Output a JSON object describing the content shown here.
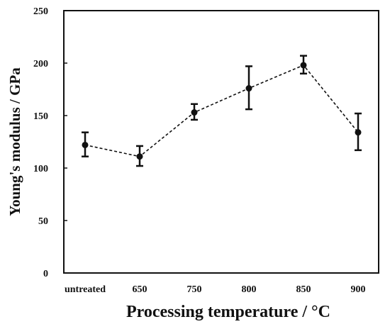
{
  "chart_data": {
    "type": "line",
    "categories": [
      "untreated",
      "650",
      "750",
      "800",
      "850",
      "900"
    ],
    "series": [
      {
        "values": [
          122,
          111,
          153,
          176,
          198,
          134
        ],
        "error_low": [
          111,
          102,
          146,
          156,
          190,
          117
        ],
        "error_high": [
          134,
          121,
          161,
          197,
          207,
          152
        ],
        "line_style": "dashed",
        "color": "#111111"
      }
    ],
    "xlabel": "Processing temperature / °C",
    "ylabel": "Young's modulus / GPa",
    "ylim": [
      0,
      250
    ],
    "yticks": [
      0,
      50,
      100,
      150,
      200,
      250
    ],
    "grid": false,
    "legend": "none"
  }
}
